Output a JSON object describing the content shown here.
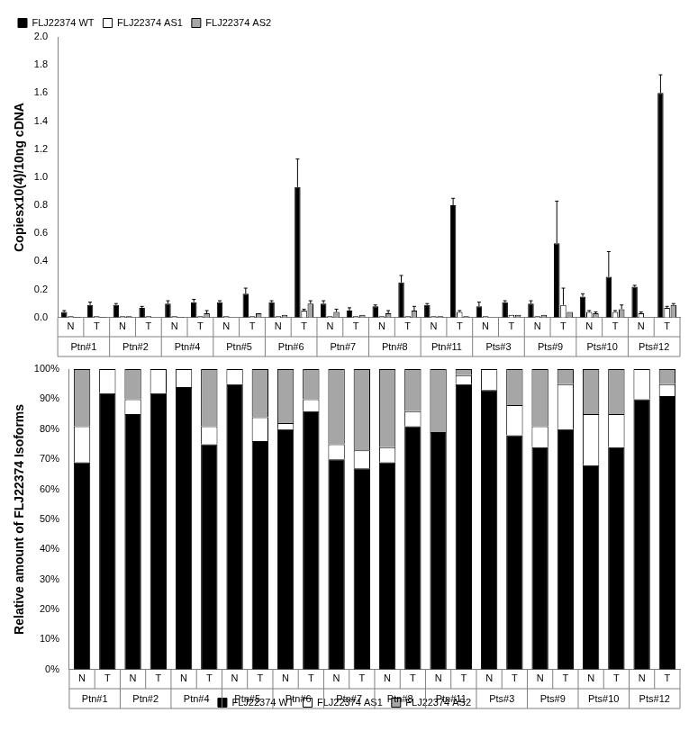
{
  "chart_data": [
    {
      "type": "bar",
      "ylabel": "Copiesx10(4)/10ng cDNA",
      "categories": [
        "N",
        "T",
        "N",
        "T",
        "N",
        "T",
        "N",
        "T",
        "N",
        "T",
        "N",
        "T",
        "N",
        "T",
        "N",
        "T",
        "N",
        "T",
        "N",
        "T",
        "N",
        "T",
        "N",
        "T"
      ],
      "groups": [
        "Ptn#1",
        "Ptn#2",
        "Ptn#4",
        "Ptn#5",
        "Ptn#6",
        "Ptn#7",
        "Ptn#8",
        "Ptn#11",
        "Pts#3",
        "Pts#9",
        "Pts#10",
        "Pts#12"
      ],
      "series": [
        {
          "name": "FLJ22374 WT",
          "color": "#000000",
          "values": [
            0.04,
            0.09,
            0.09,
            0.07,
            0.1,
            0.11,
            0.11,
            0.17,
            0.11,
            0.93,
            0.1,
            0.05,
            0.08,
            0.25,
            0.09,
            0.8,
            0.08,
            0.11,
            0.1,
            0.53,
            0.15,
            0.29,
            0.22,
            1.6
          ],
          "errors": [
            0.01,
            0.02,
            0.01,
            0.01,
            0.02,
            0.02,
            0.01,
            0.04,
            0.01,
            0.2,
            0.02,
            0.02,
            0.01,
            0.05,
            0.01,
            0.05,
            0.03,
            0.01,
            0.02,
            0.3,
            0.02,
            0.18,
            0.01,
            0.13
          ]
        },
        {
          "name": "FLJ22374 AS1",
          "color": "#ffffff",
          "values": [
            0.01,
            0.01,
            0.01,
            0.01,
            0.01,
            0.01,
            0.01,
            0.01,
            0.01,
            0.05,
            0.01,
            0.01,
            0.01,
            0.01,
            0.01,
            0.04,
            0.01,
            0.02,
            0.01,
            0.09,
            0.04,
            0.04,
            0.03,
            0.07
          ],
          "errors": [
            0,
            0,
            0,
            0,
            0,
            0,
            0,
            0,
            0,
            0.01,
            0,
            0,
            0,
            0,
            0,
            0.01,
            0,
            0,
            0,
            0.12,
            0.01,
            0.01,
            0.01,
            0.01
          ]
        },
        {
          "name": "FLJ22374 AS2",
          "color": "#a6a6a6",
          "values": [
            0.005,
            0.005,
            0.01,
            0.0,
            0.005,
            0.03,
            0.0,
            0.03,
            0.02,
            0.1,
            0.04,
            0.02,
            0.03,
            0.05,
            0.01,
            0.01,
            0.0,
            0.02,
            0.02,
            0.04,
            0.03,
            0.06,
            0.0,
            0.09
          ],
          "errors": [
            0,
            0,
            0,
            0,
            0,
            0.02,
            0,
            0,
            0,
            0.02,
            0.02,
            0,
            0.02,
            0.03,
            0,
            0,
            0,
            0,
            0,
            0,
            0.01,
            0.03,
            0,
            0.01
          ]
        }
      ],
      "ylim": [
        0,
        2.0
      ],
      "yticks": [
        {
          "value": 0,
          "label": "0.0"
        },
        0.2,
        0.4,
        0.6,
        0.8,
        {
          "value": 1,
          "label": "1.0"
        },
        1.2,
        1.4,
        1.6,
        1.8,
        {
          "value": 2,
          "label": "2.0"
        }
      ],
      "legend": "top-left",
      "grid": false
    },
    {
      "type": "bar",
      "ylabel": "Relative amount of FLJ22374 Isoforms",
      "categories": [
        "N",
        "T",
        "N",
        "T",
        "N",
        "T",
        "N",
        "T",
        "N",
        "T",
        "N",
        "T",
        "N",
        "T",
        "N",
        "T",
        "N",
        "T",
        "N",
        "T",
        "N",
        "T",
        "N",
        "T"
      ],
      "groups": [
        "Ptn#1",
        "Ptn#2",
        "Ptn#4",
        "Ptn#5",
        "Ptn#6",
        "Ptn#7",
        "Ptn#8",
        "Ptn#11",
        "Pts#3",
        "Pts#9",
        "Pts#10",
        "Pts#12"
      ],
      "series": [
        {
          "name": "FLJ22374 WT",
          "color": "#000000",
          "values": [
            69,
            92,
            85,
            92,
            94,
            75,
            95,
            76,
            80,
            86,
            70,
            67,
            69,
            81,
            79,
            95,
            93,
            78,
            74,
            80,
            68,
            74,
            90,
            91
          ]
        },
        {
          "name": "FLJ22374 AS1",
          "color": "#ffffff",
          "values": [
            12,
            8,
            5,
            8,
            6,
            6,
            5,
            8,
            2,
            4,
            5,
            6,
            5,
            5,
            0,
            3,
            7,
            10,
            7,
            15,
            17,
            11,
            10,
            4
          ]
        },
        {
          "name": "FLJ22374 AS2",
          "color": "#a6a6a6",
          "values": [
            19,
            0,
            10,
            0,
            0,
            19,
            0,
            16,
            18,
            10,
            25,
            27,
            26,
            14,
            21,
            2,
            0,
            12,
            19,
            5,
            15,
            15,
            0,
            5
          ]
        }
      ],
      "ylim": [
        0,
        100
      ],
      "yticks": [
        {
          "value": 0,
          "label": "0%"
        },
        {
          "value": 10,
          "label": "10%"
        },
        {
          "value": 20,
          "label": "20%"
        },
        {
          "value": 30,
          "label": "30%"
        },
        {
          "value": 40,
          "label": "40%"
        },
        {
          "value": 50,
          "label": "50%"
        },
        {
          "value": 60,
          "label": "60%"
        },
        {
          "value": 70,
          "label": "70%"
        },
        {
          "value": 80,
          "label": "80%"
        },
        {
          "value": 90,
          "label": "90%"
        },
        {
          "value": 100,
          "label": "100%"
        }
      ],
      "stacked": true,
      "legend": "bottom",
      "grid": false
    }
  ]
}
